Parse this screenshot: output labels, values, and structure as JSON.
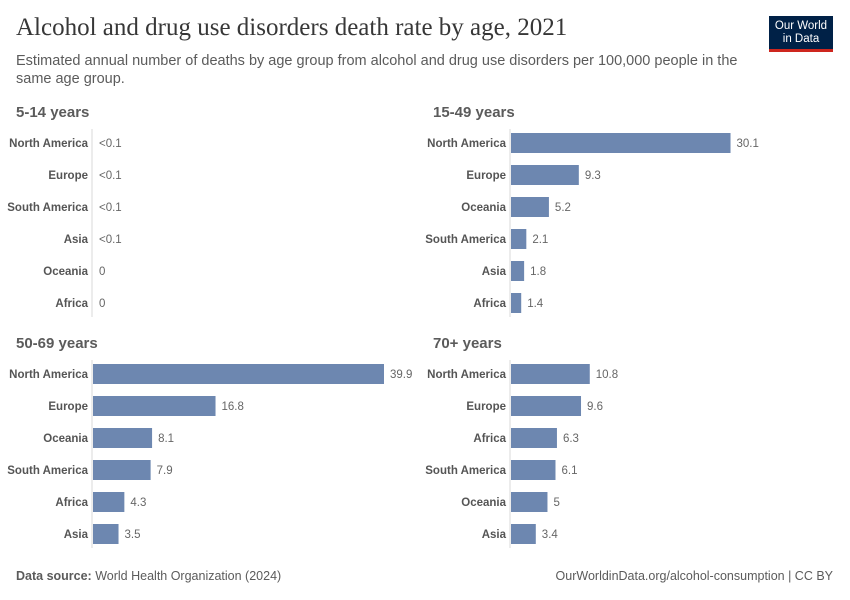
{
  "header": {
    "title": "Alcohol and drug use disorders death rate by age, 2021",
    "subtitle": "Estimated annual number of deaths by age group from alcohol and drug use disorders per 100,000 people in the same age group.",
    "logo_line1": "Our World",
    "logo_line2": "in Data"
  },
  "footer": {
    "source_label": "Data source:",
    "source": "World Health Organization (2024)",
    "url": "OurWorldinData.org/alcohol-consumption | CC BY"
  },
  "colors": {
    "bar": "#6d87b0",
    "text": "#5b5b5b",
    "axis": "#dadada"
  },
  "chart_data": [
    {
      "type": "bar",
      "orientation": "horizontal",
      "title": "5-14 years",
      "categories": [
        "North America",
        "Europe",
        "South America",
        "Asia",
        "Oceania",
        "Africa"
      ],
      "values": [
        0.05,
        0.05,
        0.05,
        0.05,
        0,
        0
      ],
      "labels": [
        "<0.1",
        "<0.1",
        "<0.1",
        "<0.1",
        "0",
        "0"
      ]
    },
    {
      "type": "bar",
      "orientation": "horizontal",
      "title": "15-49 years",
      "categories": [
        "North America",
        "Europe",
        "Oceania",
        "South America",
        "Asia",
        "Africa"
      ],
      "values": [
        30.1,
        9.3,
        5.2,
        2.1,
        1.8,
        1.4
      ],
      "labels": [
        "30.1",
        "9.3",
        "5.2",
        "2.1",
        "1.8",
        "1.4"
      ]
    },
    {
      "type": "bar",
      "orientation": "horizontal",
      "title": "50-69 years",
      "categories": [
        "North America",
        "Europe",
        "Oceania",
        "South America",
        "Africa",
        "Asia"
      ],
      "values": [
        39.9,
        16.8,
        8.1,
        7.9,
        4.3,
        3.5
      ],
      "labels": [
        "39.9",
        "16.8",
        "8.1",
        "7.9",
        "4.3",
        "3.5"
      ]
    },
    {
      "type": "bar",
      "orientation": "horizontal",
      "title": "70+ years",
      "categories": [
        "North America",
        "Europe",
        "Africa",
        "South America",
        "Oceania",
        "Asia"
      ],
      "values": [
        10.8,
        9.6,
        6.3,
        6.1,
        5,
        3.4
      ],
      "labels": [
        "10.8",
        "9.6",
        "6.3",
        "6.1",
        "5",
        "3.4"
      ]
    }
  ]
}
